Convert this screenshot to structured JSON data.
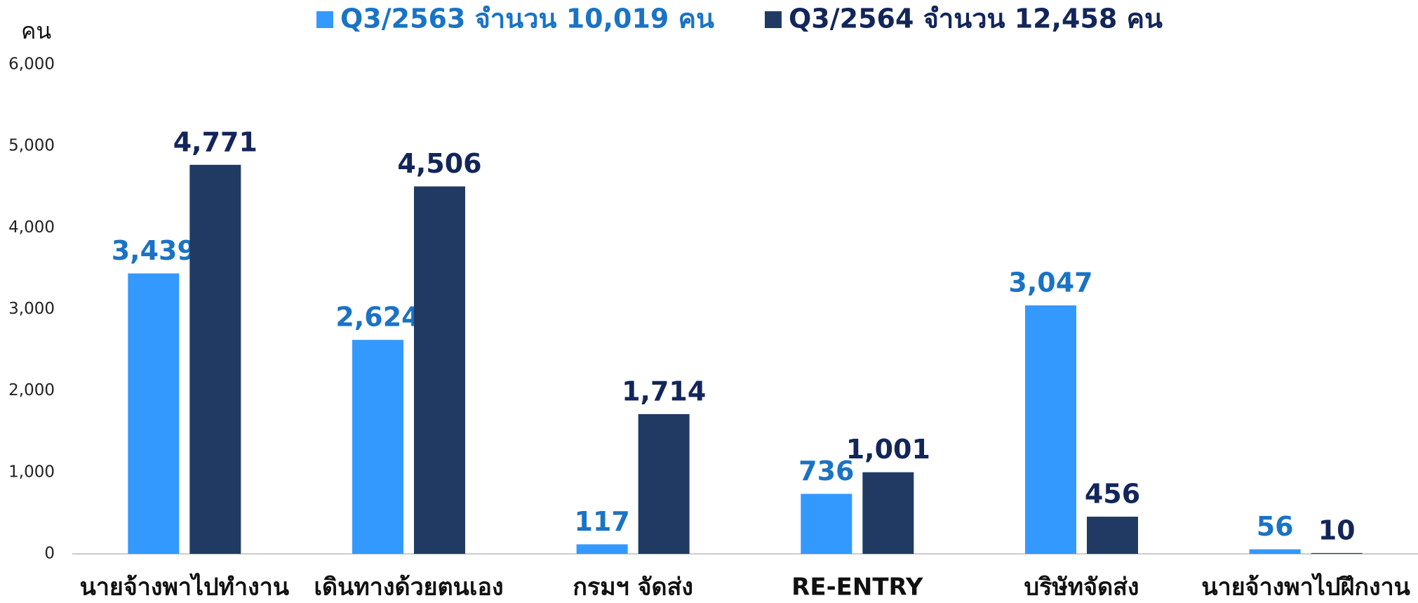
{
  "chart_data": {
    "type": "bar",
    "y_label": "คน",
    "categories": [
      "นายจ้างพาไปทำงาน",
      "เดินทางด้วยตนเอง",
      "กรมฯ จัดส่ง",
      "RE-ENTRY",
      "บริษัทจัดส่ง",
      "นายจ้างพาไปฝึกงาน"
    ],
    "series": [
      {
        "name": "Q3/2563 จำนวน 10,019 คน",
        "color": "#3399ff",
        "label_color": "#1a73c4",
        "values": [
          3439,
          2624,
          117,
          736,
          3047,
          56
        ],
        "value_labels": [
          "3,439",
          "2,624",
          "117",
          "736",
          "3,047",
          "56"
        ]
      },
      {
        "name": "Q3/2564 จำนวน 12,458 คน",
        "color": "#213a64",
        "label_color": "#13265a",
        "values": [
          4771,
          4506,
          1714,
          1001,
          456,
          10
        ],
        "value_labels": [
          "4,771",
          "4,506",
          "1,714",
          "1,001",
          "456",
          "10"
        ]
      }
    ],
    "ylim": [
      0,
      6000
    ],
    "yticks": [
      0,
      {
        "value": 1000,
        "label": "1,000"
      },
      {
        "value": 2000,
        "label": "2,000"
      },
      {
        "value": 3000,
        "label": "3,000"
      },
      {
        "value": 4000,
        "label": "4,000"
      },
      {
        "value": 5000,
        "label": "5,000"
      },
      {
        "value": 6000,
        "label": "6,000"
      }
    ],
    "grid": false
  }
}
